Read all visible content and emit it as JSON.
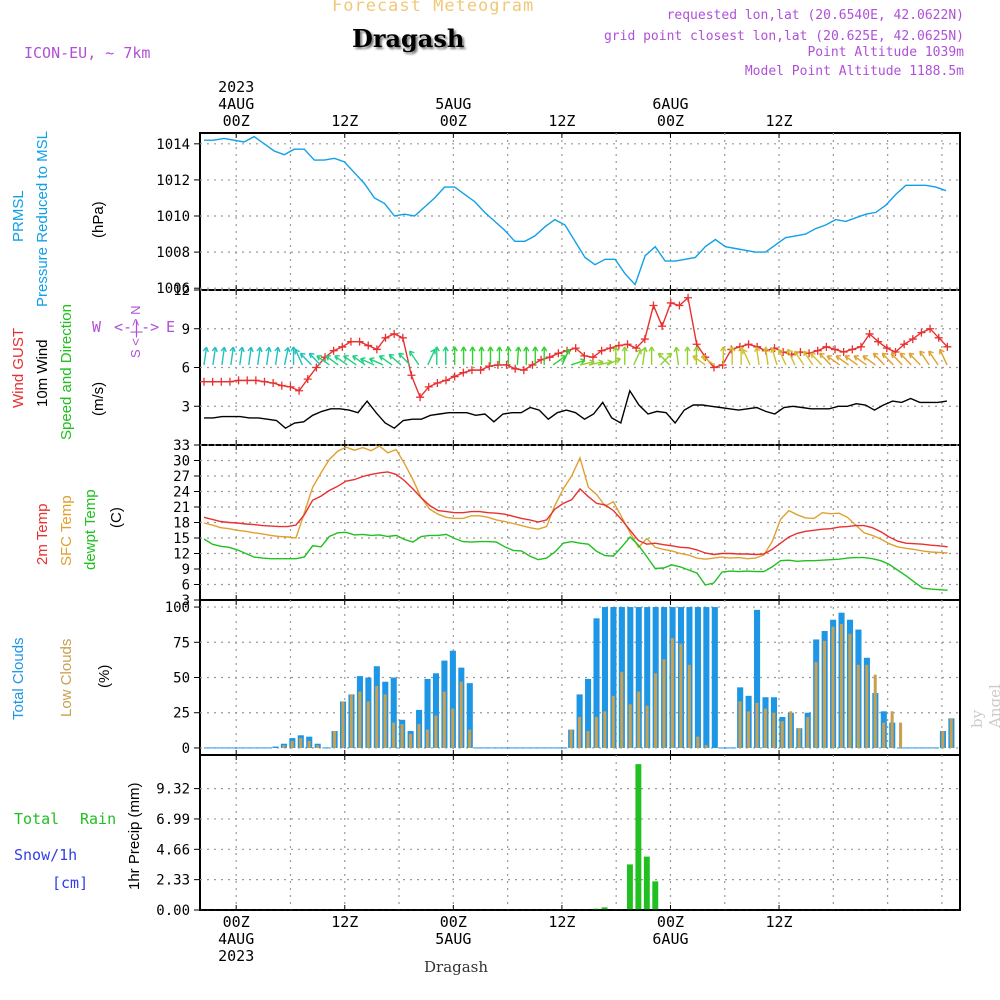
{
  "header": {
    "title": "Forecast Meteogram",
    "station": "Dragash",
    "model": "ICON-EU, ~ 7km",
    "requested": "requested lon,lat (20.6540E, 42.0622N)",
    "grid": "grid point closest lon,lat (20.625E, 42.0625N)",
    "point_alt": "Point Altitude 1039m",
    "model_alt": "Model Point Altitude 1188.5m",
    "footer_station": "Dragash",
    "watermark": "by Angel"
  },
  "colors": {
    "title": "#f0c878",
    "info": "#b050d8",
    "pressure": "#10a0e8",
    "gust": "#e83030",
    "wind": "#000000",
    "windvec": "#20c020",
    "temp2m": "#e83030",
    "sfc": "#e0a030",
    "dew": "#20c020",
    "total_cloud": "#1e96e6",
    "low_cloud": "#c8a050",
    "rain": "#20c020",
    "snow": "#3040e8"
  },
  "time_axis": {
    "top": [
      {
        "label": "2023\n4AUG\n00Z"
      },
      {
        "label": "12Z"
      },
      {
        "label": "5AUG\n00Z"
      },
      {
        "label": "12Z"
      },
      {
        "label": "6AUG\n00Z"
      },
      {
        "label": "12Z"
      }
    ],
    "bottom": [
      {
        "label": "00Z\n4AUG\n2023"
      },
      {
        "label": "12Z"
      },
      {
        "label": "00Z\n5AUG"
      },
      {
        "label": "12Z"
      },
      {
        "label": "00Z\n6AUG"
      },
      {
        "label": "12Z"
      }
    ]
  },
  "panel_labels": {
    "pressure": [
      "PRMSL",
      "Pressure Reduced to MSL",
      "(hPa)"
    ],
    "wind": [
      "Wind GUST",
      "10m Wind",
      "Speed and Direction",
      "(m/s)"
    ],
    "compass": {
      "n": "N",
      "s": "S",
      "w": "W",
      "e": "E",
      "arrows": "<-|->"
    },
    "temp": [
      "2m Temp",
      "SFC Temp",
      "dewpt Temp",
      "(C)"
    ],
    "cloud": [
      "Total Clouds",
      "Low Clouds",
      "(%)"
    ],
    "precip": [
      "Total",
      "Rain",
      "Snow/1h",
      "[cm]",
      "1hr Precip (mm)"
    ]
  },
  "chart_data": [
    {
      "type": "line",
      "title": "PRMSL Pressure Reduced to MSL",
      "ylabel": "hPa",
      "x_hours_start": -4,
      "x_step_hours": 1,
      "ylim": [
        1005.9,
        1014.6
      ],
      "yticks": [
        1006,
        1008,
        1010,
        1012,
        1014
      ],
      "series": [
        {
          "name": "PRMSL",
          "values": [
            1014.2,
            1014.2,
            1014.3,
            1014.2,
            1014.1,
            1014.4,
            1014.0,
            1013.6,
            1013.4,
            1013.7,
            1013.7,
            1013.1,
            1013.1,
            1013.2,
            1013.0,
            1012.4,
            1011.8,
            1011.0,
            1010.7,
            1010.0,
            1010.1,
            1010.0,
            1010.5,
            1011.0,
            1011.6,
            1011.6,
            1011.2,
            1010.8,
            1010.2,
            1009.7,
            1009.2,
            1008.6,
            1008.6,
            1008.9,
            1009.4,
            1009.8,
            1009.5,
            1008.6,
            1007.7,
            1007.3,
            1007.6,
            1007.6,
            1006.8,
            1006.2,
            1007.8,
            1008.3,
            1007.5,
            1007.5,
            1007.6,
            1007.7,
            1008.3,
            1008.7,
            1008.3,
            1008.2,
            1008.1,
            1008.0,
            1008.0,
            1008.4,
            1008.8,
            1008.9,
            1009.0,
            1009.3,
            1009.5,
            1009.8,
            1009.7,
            1009.9,
            1010.1,
            1010.2,
            1010.6,
            1011.2,
            1011.7,
            1011.7,
            1011.7,
            1011.6,
            1011.4
          ]
        }
      ]
    },
    {
      "type": "line",
      "title": "Wind GUST / 10m Wind Speed and Direction",
      "ylabel": "m/s",
      "x_hours_start": -4,
      "x_step_hours": 1,
      "ylim": [
        0,
        12
      ],
      "yticks": [
        3,
        6,
        9,
        12
      ],
      "series": [
        {
          "name": "Wind GUST",
          "values": [
            4.9,
            4.9,
            4.9,
            4.9,
            5.0,
            5.0,
            5.0,
            4.9,
            4.8,
            4.6,
            4.5,
            4.2,
            5.1,
            6.0,
            6.8,
            7.3,
            7.6,
            8.0,
            8.0,
            7.7,
            7.4,
            8.3,
            8.6,
            8.3,
            5.4,
            3.7,
            4.5,
            4.8,
            5.0,
            5.3,
            5.6,
            5.8,
            5.8,
            6.1,
            6.2,
            6.2,
            5.9,
            5.8,
            6.2,
            6.6,
            6.8,
            7.1,
            7.3,
            7.5,
            6.9,
            6.8,
            7.3,
            7.5,
            7.7,
            7.8,
            7.5,
            8.2,
            10.8,
            9.2,
            11.0,
            10.8,
            11.4,
            7.8,
            6.8,
            6.0,
            6.2,
            7.4,
            7.6,
            7.8,
            7.6,
            7.3,
            7.5,
            7.2,
            7.0,
            7.2,
            7.1,
            7.3,
            7.6,
            7.4,
            7.2,
            7.4,
            7.6,
            8.6,
            8.0,
            7.5,
            7.2,
            7.8,
            8.2,
            8.7,
            9.0,
            8.3,
            7.6
          ]
        },
        {
          "name": "10m Wind",
          "values": [
            2.1,
            2.1,
            2.2,
            2.2,
            2.2,
            2.1,
            2.1,
            2.0,
            1.9,
            1.3,
            1.7,
            1.8,
            2.3,
            2.6,
            2.8,
            2.8,
            2.7,
            2.5,
            3.4,
            2.5,
            1.7,
            1.3,
            1.9,
            2.0,
            2.0,
            2.3,
            2.4,
            2.5,
            2.5,
            2.5,
            2.3,
            2.4,
            1.8,
            2.4,
            2.5,
            2.5,
            2.9,
            2.7,
            2.0,
            2.5,
            2.7,
            2.5,
            2.0,
            2.4,
            3.3,
            2.1,
            1.7,
            4.2,
            3.1,
            2.4,
            2.6,
            2.5,
            1.7,
            2.7,
            3.1,
            3.1,
            3.0,
            2.9,
            2.8,
            2.7,
            2.8,
            2.9,
            2.6,
            2.4,
            2.9,
            3.0,
            2.9,
            2.8,
            2.8,
            2.8,
            3.0,
            3.0,
            3.2,
            3.1,
            2.7,
            3.1,
            3.4,
            3.3,
            3.6,
            3.3,
            3.3,
            3.3,
            3.4
          ]
        }
      ]
    },
    {
      "type": "line",
      "title": "2m Temp / SFC Temp / dewpt Temp",
      "ylabel": "C",
      "x_hours_start": -4,
      "x_step_hours": 1,
      "ylim": [
        3,
        33
      ],
      "yticks": [
        3,
        6,
        9,
        12,
        15,
        18,
        21,
        24,
        27,
        30,
        33
      ],
      "series": [
        {
          "name": "2m Temp",
          "values": [
            19.0,
            18.6,
            18.2,
            18.0,
            17.9,
            17.7,
            17.6,
            17.4,
            17.3,
            17.2,
            17.2,
            17.5,
            19.5,
            22.3,
            23.1,
            24.2,
            25.0,
            26.0,
            26.3,
            26.9,
            27.3,
            27.6,
            27.8,
            27.3,
            26.1,
            24.5,
            22.8,
            21.3,
            20.3,
            20.1,
            19.9,
            19.9,
            20.1,
            20.1,
            19.9,
            19.8,
            19.6,
            19.2,
            18.8,
            18.5,
            18.1,
            18.5,
            20.6,
            21.7,
            22.4,
            24.5,
            23.0,
            21.7,
            21.4,
            20.3,
            18.5,
            16.5,
            14.5,
            13.8,
            14.0,
            13.7,
            13.5,
            13.2,
            13.1,
            12.7,
            12.1,
            11.8,
            12.0,
            12.0,
            11.9,
            11.9,
            11.8,
            11.9,
            12.8,
            14.0,
            15.2,
            15.9,
            16.3,
            16.5,
            16.7,
            16.8,
            17.1,
            17.2,
            17.4,
            17.4,
            17.0,
            16.2,
            15.2,
            14.4,
            14.0,
            13.9,
            13.8,
            13.6,
            13.5,
            13.3
          ]
        },
        {
          "name": "SFC Temp",
          "values": [
            17.9,
            17.5,
            17.0,
            16.8,
            16.5,
            16.3,
            16.0,
            15.8,
            15.5,
            15.3,
            15.2,
            15.0,
            19.8,
            24.8,
            27.6,
            30.2,
            31.8,
            32.6,
            32.0,
            32.5,
            31.9,
            32.8,
            31.5,
            32.1,
            29.4,
            26.3,
            22.8,
            20.6,
            19.6,
            19.0,
            18.8,
            18.8,
            19.3,
            19.3,
            19.0,
            18.5,
            18.2,
            17.8,
            17.4,
            17.0,
            16.7,
            17.2,
            21.3,
            24.5,
            27.0,
            30.5,
            24.8,
            23.4,
            21.2,
            22.0,
            19.0,
            16.0,
            13.2,
            14.9,
            13.2,
            12.8,
            12.5,
            12.0,
            11.7,
            11.1,
            10.9,
            11.1,
            11.3,
            11.1,
            11.2,
            11.0,
            11.1,
            11.7,
            14.3,
            18.6,
            20.3,
            19.5,
            18.9,
            18.8,
            19.9,
            19.7,
            19.8,
            19.0,
            17.5,
            16.0,
            15.5,
            14.8,
            13.9,
            13.3,
            13.0,
            12.8,
            12.5,
            12.3,
            12.2,
            12.1
          ]
        },
        {
          "name": "dewpt Temp",
          "values": [
            14.8,
            13.8,
            13.4,
            13.2,
            12.7,
            12.0,
            11.3,
            11.1,
            11.0,
            11.0,
            11.0,
            11.0,
            11.3,
            13.5,
            13.3,
            15.3,
            16.0,
            16.1,
            15.6,
            15.7,
            15.5,
            15.6,
            15.3,
            15.5,
            14.7,
            14.2,
            15.3,
            15.5,
            15.5,
            15.7,
            14.9,
            14.3,
            14.2,
            14.3,
            14.3,
            14.2,
            13.3,
            12.6,
            12.5,
            11.5,
            10.8,
            11.1,
            12.3,
            14.0,
            14.3,
            14.0,
            13.8,
            12.4,
            11.6,
            11.5,
            13.3,
            15.2,
            13.6,
            11.4,
            9.1,
            9.2,
            9.8,
            9.4,
            8.8,
            8.2,
            5.9,
            6.3,
            8.4,
            8.6,
            8.5,
            8.6,
            8.5,
            8.5,
            9.4,
            10.6,
            10.7,
            10.5,
            10.6,
            10.6,
            10.7,
            10.8,
            10.9,
            11.1,
            11.2,
            11.2,
            11.0,
            10.6,
            9.9,
            8.8,
            7.7,
            6.5,
            5.3,
            5.1,
            5.0,
            4.9
          ]
        }
      ]
    },
    {
      "type": "bar",
      "title": "Total Clouds / Low Clouds",
      "ylabel": "%",
      "x_hours_start": -4,
      "x_step_hours": 1,
      "ylim": [
        -5,
        105
      ],
      "yticks": [
        0,
        25,
        50,
        75,
        100
      ],
      "series": [
        {
          "name": "Total Clouds",
          "values": [
            0,
            0,
            0,
            0,
            0,
            0,
            0,
            0,
            1,
            3,
            7,
            9,
            8,
            3,
            0,
            12,
            33,
            38,
            51,
            50,
            58,
            47,
            50,
            20,
            12,
            27,
            49,
            53,
            62,
            69,
            57,
            46,
            0,
            0,
            0,
            0,
            0,
            0,
            0,
            0,
            0,
            0,
            0,
            13,
            38,
            49,
            92,
            100,
            100,
            100,
            100,
            100,
            100,
            100,
            100,
            100,
            100,
            100,
            100,
            100,
            100,
            0,
            0,
            43,
            37,
            98,
            36,
            36,
            22,
            25,
            14,
            25,
            77,
            83,
            91,
            96,
            91,
            84,
            64,
            39,
            26,
            18,
            0,
            0,
            0,
            0,
            0,
            12,
            21
          ]
        },
        {
          "name": "Low Clouds",
          "values": [
            0,
            0,
            0,
            0,
            0,
            0,
            0,
            0,
            0,
            2,
            5,
            7,
            5,
            2,
            0,
            12,
            33,
            38,
            40,
            33,
            44,
            38,
            18,
            17,
            10,
            17,
            13,
            23,
            40,
            28,
            47,
            13,
            0,
            0,
            0,
            0,
            0,
            0,
            0,
            0,
            0,
            0,
            0,
            13,
            22,
            12,
            22,
            26,
            37,
            54,
            31,
            40,
            30,
            53,
            63,
            78,
            74,
            59,
            8,
            2,
            0,
            0,
            0,
            33,
            26,
            32,
            28,
            25,
            19,
            26,
            14,
            22,
            61,
            76,
            86,
            88,
            81,
            59,
            59,
            52,
            18,
            26,
            18,
            0,
            0,
            0,
            0,
            12,
            21
          ]
        }
      ]
    },
    {
      "type": "bar",
      "title": "Total Rain / Snow 1h",
      "ylabel": "1hr Precip (mm)",
      "x_hours_start": -4,
      "x_step_hours": 1,
      "ylim": [
        0,
        11.9
      ],
      "yticks": [
        0,
        2.33,
        4.66,
        6.99,
        9.32
      ],
      "series": [
        {
          "name": "Total Rain",
          "values": [
            0,
            0,
            0,
            0,
            0,
            0,
            0,
            0,
            0,
            0,
            0,
            0,
            0,
            0,
            0,
            0,
            0,
            0,
            0,
            0,
            0,
            0,
            0,
            0,
            0,
            0,
            0,
            0,
            0,
            0,
            0,
            0,
            0,
            0,
            0,
            0,
            0,
            0,
            0,
            0,
            0,
            0,
            0,
            0,
            0,
            0,
            0.1,
            0.2,
            0,
            0.05,
            3.5,
            11.2,
            4.1,
            2.2,
            0,
            0,
            0,
            0,
            0,
            0,
            0,
            0,
            0,
            0,
            0,
            0,
            0,
            0,
            0,
            0,
            0,
            0,
            0,
            0,
            0,
            0,
            0,
            0,
            0,
            0,
            0,
            0,
            0,
            0,
            0,
            0,
            0,
            0,
            0
          ]
        },
        {
          "name": "Snow/1h",
          "values": []
        }
      ]
    }
  ]
}
